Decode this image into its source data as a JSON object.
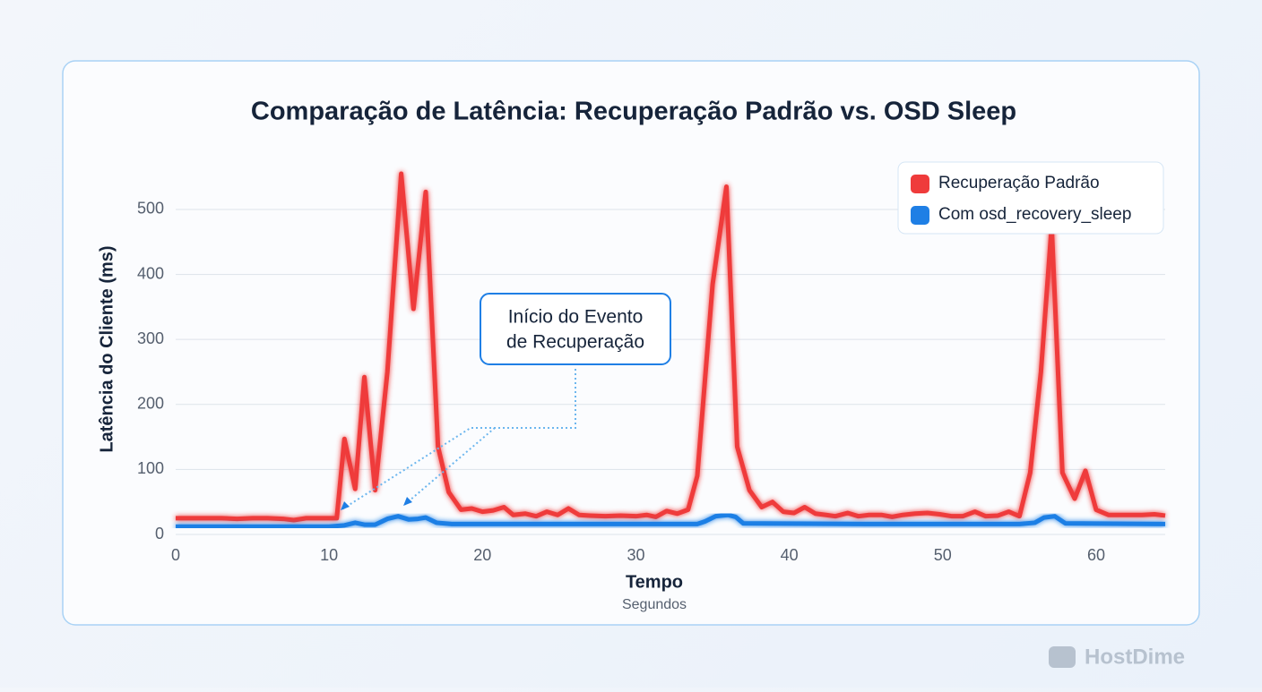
{
  "chart_data": {
    "type": "line",
    "title": "Comparação de Latência: Recuperação Padrão vs. OSD Sleep",
    "y_label": "Latência do Cliente (ms)",
    "x_label": "Tempo",
    "x_sublabel": "Segundos",
    "annotation": [
      "Início do Evento",
      "de Recuperação"
    ],
    "watermark": "HostDime",
    "xlim": [
      0,
      64.5
    ],
    "ylim": [
      0,
      560
    ],
    "xticks": [
      0,
      10,
      20,
      30,
      40,
      50,
      60
    ],
    "yticks": [
      0,
      100,
      200,
      300,
      400,
      500
    ],
    "grid": true,
    "legend": "top-right",
    "series": [
      {
        "name": "Recuperação Padrão",
        "color": "#ef3b3b",
        "x": [
          0,
          1,
          2,
          3,
          4,
          5,
          6,
          7,
          7.7,
          8.5,
          9,
          10,
          10.5,
          11,
          11.7,
          12.3,
          13,
          13.8,
          14.7,
          15.5,
          16.3,
          17.1,
          17.8,
          18.6,
          19.3,
          20,
          20.7,
          21.4,
          22,
          22.8,
          23.5,
          24.2,
          24.9,
          25.6,
          26.3,
          27,
          28,
          29,
          30,
          30.7,
          31.3,
          32,
          32.7,
          33.4,
          34,
          35,
          35.9,
          36.6,
          37.4,
          38.2,
          38.9,
          39.6,
          40.3,
          41,
          41.7,
          42.4,
          43,
          43.8,
          44.5,
          45.2,
          46,
          46.7,
          47.4,
          48.2,
          49,
          49.8,
          50.6,
          51.3,
          52.1,
          52.8,
          53.6,
          54.3,
          55,
          55.7,
          56.4,
          57.1,
          57.8,
          58.6,
          59.3,
          60,
          60.8,
          61.5,
          62.3,
          63,
          63.8,
          64.5
        ],
        "values": [
          25,
          25,
          25,
          25,
          24,
          25,
          25,
          24,
          22,
          25,
          25,
          25,
          25,
          147,
          70,
          242,
          68,
          250,
          555,
          347,
          527,
          135,
          65,
          38,
          40,
          35,
          37,
          42,
          30,
          32,
          28,
          35,
          30,
          40,
          30,
          29,
          28,
          29,
          28,
          30,
          27,
          36,
          32,
          38,
          90,
          385,
          535,
          135,
          68,
          42,
          50,
          35,
          33,
          42,
          32,
          30,
          28,
          33,
          28,
          30,
          30,
          27,
          30,
          32,
          33,
          31,
          28,
          28,
          35,
          28,
          29,
          35,
          28,
          95,
          250,
          475,
          95,
          55,
          98,
          38,
          30,
          30,
          30,
          30,
          31,
          29
        ]
      },
      {
        "name": "Com osd_recovery_sleep",
        "color": "#1f7fe5",
        "x": [
          0,
          5,
          10,
          11,
          11.7,
          12.3,
          13,
          13.8,
          14.5,
          15.2,
          15.8,
          16.3,
          17,
          18,
          25,
          34,
          34.5,
          35.2,
          36,
          36.5,
          37,
          45,
          55,
          56,
          56.6,
          57.3,
          58,
          64.5
        ],
        "values": [
          12,
          12,
          12,
          14,
          18,
          15,
          15,
          24,
          28,
          23,
          24,
          26,
          18,
          16,
          16,
          16,
          20,
          28,
          30,
          27,
          17,
          16,
          16,
          18,
          26,
          28,
          17,
          16
        ]
      }
    ]
  }
}
